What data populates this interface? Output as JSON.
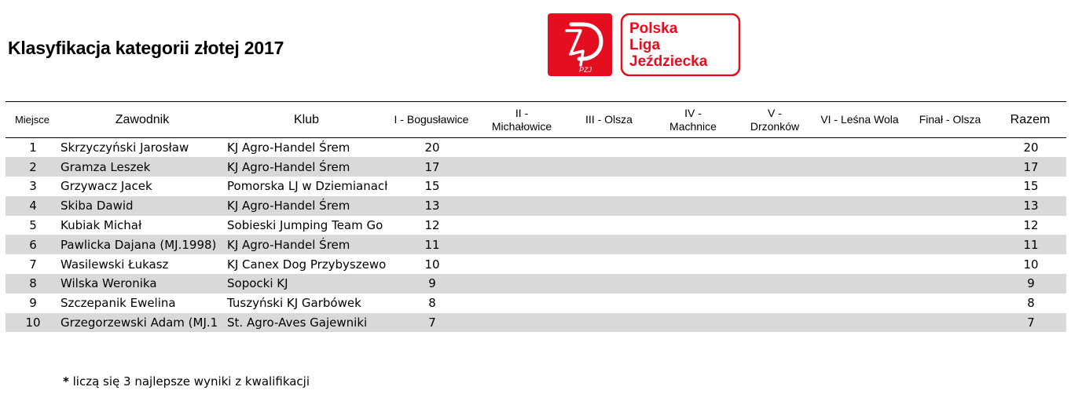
{
  "title": "Klasyfikacja kategorii złotej 2017",
  "logo": {
    "emblem_text": "PZJ",
    "line1": "Polska",
    "line2": "Liga",
    "line3": "Jeździecka",
    "brand_color": "#e30e1f"
  },
  "table": {
    "headers": {
      "place": "Miejsce",
      "rider": "Zawodnik",
      "club": "Klub",
      "r1": "I - Bogusławice",
      "r2a": "II -",
      "r2b": "Michałowice",
      "r3": "III - Olsza",
      "r4a": "IV -",
      "r4b": "Machnice",
      "r5a": "V -",
      "r5b": "Drzonków",
      "r6": "VI - Leśna Wola",
      "final": "Finał - Olsza",
      "total": "Razem"
    },
    "rows": [
      {
        "place": "1",
        "rider": "Skrzyczyński Jarosław",
        "club": "KJ Agro-Handel Śrem",
        "r1": "20",
        "total": "20"
      },
      {
        "place": "2",
        "rider": "Gramza Leszek",
        "club": "KJ Agro-Handel Śrem",
        "r1": "17",
        "total": "17"
      },
      {
        "place": "3",
        "rider": "Grzywacz Jacek",
        "club": "Pomorska LJ w Dziemianach",
        "r1": "15",
        "total": "15"
      },
      {
        "place": "4",
        "rider": "Skiba Dawid",
        "club": "KJ Agro-Handel Śrem",
        "r1": "13",
        "total": "13"
      },
      {
        "place": "5",
        "rider": "Kubiak Michał",
        "club": "Sobieski Jumping Team Go",
        "r1": "12",
        "total": "12"
      },
      {
        "place": "6",
        "rider": "Pawlicka Dajana (MJ.1998)",
        "club": "KJ Agro-Handel Śrem",
        "r1": "11",
        "total": "11"
      },
      {
        "place": "7",
        "rider": "Wasilewski Łukasz",
        "club": "KJ Canex Dog Przybyszewo",
        "r1": "10",
        "total": "10"
      },
      {
        "place": "8",
        "rider": "Wilska Weronika",
        "club": "Sopocki KJ",
        "r1": "9",
        "total": "9"
      },
      {
        "place": "9",
        "rider": "Szczepanik Ewelina",
        "club": "Tuszyński KJ Garbówek",
        "r1": "8",
        "total": "8"
      },
      {
        "place": "10",
        "rider": "Grzegorzewski Adam (MJ.1",
        "club": "St. Agro-Aves Gajewniki",
        "r1": "7",
        "total": "7"
      }
    ]
  },
  "footnote": {
    "star": "*",
    "text": " liczą się 3 najlepsze wyniki z kwalifikacji"
  }
}
